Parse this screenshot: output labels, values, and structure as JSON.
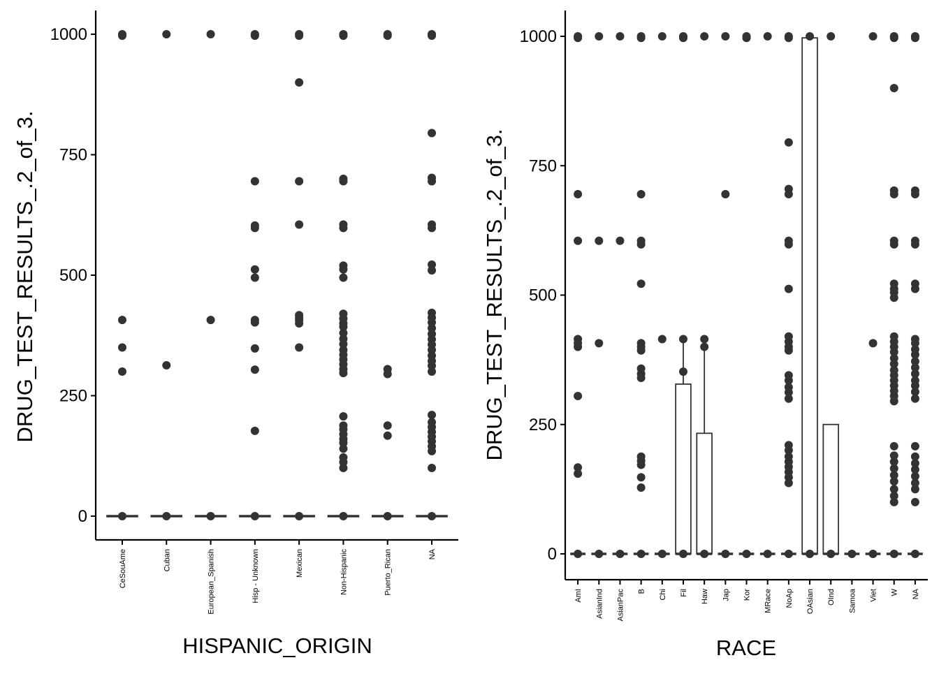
{
  "chart_data": [
    {
      "type": "box",
      "xlabel": "HISPANIC_ORIGIN",
      "ylabel": "DRUG_TEST_RESULTS_.2_of_3.",
      "ylim": [
        -50,
        1050
      ],
      "yticks": [
        0,
        250,
        500,
        750,
        1000
      ],
      "grid": false,
      "categories": [
        "CeSouAme",
        "Cuban",
        "European_Spanish",
        "Hisp - Unknown",
        "Mexican",
        "Non-Hispanic",
        "Puerto_Rican",
        "NA"
      ],
      "boxes": [
        {
          "category": "CeSouAme",
          "q1": 0,
          "median": 0,
          "q3": 0,
          "whisker_low": 0,
          "whisker_high": 0
        },
        {
          "category": "Cuban",
          "q1": 0,
          "median": 0,
          "q3": 0,
          "whisker_low": 0,
          "whisker_high": 0
        },
        {
          "category": "European_Spanish",
          "q1": 0,
          "median": 0,
          "q3": 0,
          "whisker_low": 0,
          "whisker_high": 0
        },
        {
          "category": "Hisp - Unknown",
          "q1": 0,
          "median": 0,
          "q3": 0,
          "whisker_low": 0,
          "whisker_high": 0
        },
        {
          "category": "Mexican",
          "q1": 0,
          "median": 0,
          "q3": 0,
          "whisker_low": 0,
          "whisker_high": 0
        },
        {
          "category": "Non-Hispanic",
          "q1": 0,
          "median": 0,
          "q3": 0,
          "whisker_low": 0,
          "whisker_high": 0
        },
        {
          "category": "Puerto_Rican",
          "q1": 0,
          "median": 0,
          "q3": 0,
          "whisker_low": 0,
          "whisker_high": 0
        },
        {
          "category": "NA",
          "q1": 0,
          "median": 0,
          "q3": 0,
          "whisker_low": 0,
          "whisker_high": 0
        }
      ],
      "points": [
        {
          "category": "CeSouAme",
          "values": [
            0,
            300,
            350,
            407,
            997,
            1000
          ]
        },
        {
          "category": "Cuban",
          "values": [
            0,
            313,
            1000
          ]
        },
        {
          "category": "European_Spanish",
          "values": [
            0,
            407,
            1000
          ]
        },
        {
          "category": "Hisp - Unknown",
          "values": [
            0,
            177,
            304,
            348,
            402,
            407,
            495,
            512,
            598,
            603,
            695,
            997,
            1000
          ]
        },
        {
          "category": "Mexican",
          "values": [
            0,
            350,
            400,
            407,
            412,
            417,
            605,
            695,
            900,
            997,
            1000
          ]
        },
        {
          "category": "Non-Hispanic",
          "values": [
            0,
            100,
            112,
            122,
            140,
            152,
            160,
            170,
            180,
            188,
            207,
            297,
            305,
            315,
            325,
            335,
            345,
            357,
            368,
            380,
            393,
            400,
            410,
            420,
            495,
            512,
            520,
            598,
            605,
            695,
            700,
            997,
            1000
          ]
        },
        {
          "category": "Puerto_Rican",
          "values": [
            0,
            167,
            188,
            295,
            305,
            997,
            1000
          ]
        },
        {
          "category": "NA",
          "values": [
            0,
            100,
            135,
            145,
            155,
            165,
            175,
            185,
            195,
            210,
            300,
            312,
            322,
            333,
            345,
            356,
            367,
            378,
            390,
            402,
            412,
            422,
            510,
            522,
            598,
            605,
            695,
            702,
            795,
            997,
            1000
          ]
        }
      ]
    },
    {
      "type": "box",
      "xlabel": "RACE",
      "ylabel": "DRUG_TEST_RESULTS_.2_of_3.",
      "ylim": [
        -50,
        1050
      ],
      "yticks": [
        0,
        250,
        500,
        750,
        1000
      ],
      "grid": false,
      "categories": [
        "AmI",
        "AsianInd",
        "AsianPac",
        "B",
        "Chi",
        "Fil",
        "Haw",
        "Jap",
        "Kor",
        "MRace",
        "NoAp",
        "OAsian",
        "OInd",
        "Samoa",
        "Viet",
        "W",
        "NA"
      ],
      "boxes": [
        {
          "category": "AmI",
          "q1": 0,
          "median": 0,
          "q3": 0,
          "whisker_low": 0,
          "whisker_high": 0
        },
        {
          "category": "AsianInd",
          "q1": 0,
          "median": 0,
          "q3": 0,
          "whisker_low": 0,
          "whisker_high": 0
        },
        {
          "category": "AsianPac",
          "q1": 0,
          "median": 0,
          "q3": 0,
          "whisker_low": 0,
          "whisker_high": 0
        },
        {
          "category": "B",
          "q1": 0,
          "median": 0,
          "q3": 0,
          "whisker_low": 0,
          "whisker_high": 0
        },
        {
          "category": "Chi",
          "q1": 0,
          "median": 0,
          "q3": 0,
          "whisker_low": 0,
          "whisker_high": 0
        },
        {
          "category": "Fil",
          "q1": 0,
          "median": 0,
          "q3": 328,
          "whisker_low": 0,
          "whisker_high": 415
        },
        {
          "category": "Haw",
          "q1": 0,
          "median": 0,
          "q3": 233,
          "whisker_low": 0,
          "whisker_high": 400
        },
        {
          "category": "Jap",
          "q1": 0,
          "median": 0,
          "q3": 0,
          "whisker_low": 0,
          "whisker_high": 0
        },
        {
          "category": "Kor",
          "q1": 0,
          "median": 0,
          "q3": 0,
          "whisker_low": 0,
          "whisker_high": 0
        },
        {
          "category": "MRace",
          "q1": 0,
          "median": 0,
          "q3": 0,
          "whisker_low": 0,
          "whisker_high": 0
        },
        {
          "category": "NoAp",
          "q1": 0,
          "median": 0,
          "q3": 0,
          "whisker_low": 0,
          "whisker_high": 0
        },
        {
          "category": "OAsian",
          "q1": 0,
          "median": 0,
          "q3": 997,
          "whisker_low": 0,
          "whisker_high": 1000
        },
        {
          "category": "OInd",
          "q1": 0,
          "median": 0,
          "q3": 250,
          "whisker_low": 0,
          "whisker_high": 250
        },
        {
          "category": "Samoa",
          "q1": 0,
          "median": 0,
          "q3": 0,
          "whisker_low": 0,
          "whisker_high": 0
        },
        {
          "category": "Viet",
          "q1": 0,
          "median": 0,
          "q3": 0,
          "whisker_low": 0,
          "whisker_high": 0
        },
        {
          "category": "W",
          "q1": 0,
          "median": 0,
          "q3": 0,
          "whisker_low": 0,
          "whisker_high": 0
        },
        {
          "category": "NA",
          "q1": 0,
          "median": 0,
          "q3": 0,
          "whisker_low": 0,
          "whisker_high": 0
        }
      ],
      "points": [
        {
          "category": "AmI",
          "values": [
            0,
            155,
            167,
            305,
            400,
            407,
            415,
            605,
            695,
            997,
            1000
          ]
        },
        {
          "category": "AsianInd",
          "values": [
            0,
            407,
            605,
            1000
          ]
        },
        {
          "category": "AsianPac",
          "values": [
            0,
            605,
            1000
          ]
        },
        {
          "category": "B",
          "values": [
            0,
            128,
            148,
            172,
            180,
            188,
            340,
            348,
            358,
            393,
            400,
            407,
            522,
            598,
            605,
            695,
            997,
            1000
          ]
        },
        {
          "category": "Chi",
          "values": [
            0,
            415,
            1000
          ]
        },
        {
          "category": "Fil",
          "values": [
            0,
            352,
            415,
            997,
            1000
          ]
        },
        {
          "category": "Haw",
          "values": [
            0,
            400,
            415,
            1000
          ]
        },
        {
          "category": "Jap",
          "values": [
            0,
            695,
            1000
          ]
        },
        {
          "category": "Kor",
          "values": [
            0,
            997,
            1000
          ]
        },
        {
          "category": "MRace",
          "values": [
            0,
            1000
          ]
        },
        {
          "category": "NoAp",
          "values": [
            0,
            137,
            148,
            158,
            168,
            178,
            188,
            200,
            210,
            300,
            312,
            322,
            335,
            345,
            393,
            400,
            410,
            420,
            512,
            598,
            605,
            695,
            705,
            795,
            997,
            1000
          ]
        },
        {
          "category": "OAsian",
          "values": [
            0,
            1000
          ]
        },
        {
          "category": "OInd",
          "values": [
            0,
            1000
          ]
        },
        {
          "category": "Samoa",
          "values": [
            0
          ]
        },
        {
          "category": "Viet",
          "values": [
            0,
            407,
            1000
          ]
        },
        {
          "category": "W",
          "values": [
            0,
            100,
            112,
            125,
            140,
            152,
            165,
            178,
            190,
            208,
            295,
            305,
            315,
            325,
            335,
            345,
            355,
            367,
            378,
            390,
            400,
            410,
            420,
            495,
            505,
            512,
            522,
            598,
            605,
            695,
            702,
            900,
            997,
            1000
          ]
        },
        {
          "category": "NA",
          "values": [
            0,
            100,
            125,
            137,
            150,
            163,
            175,
            188,
            208,
            300,
            313,
            325,
            335,
            348,
            360,
            372,
            385,
            395,
            407,
            415,
            512,
            522,
            598,
            605,
            695,
            702,
            997,
            1000
          ]
        }
      ]
    }
  ]
}
